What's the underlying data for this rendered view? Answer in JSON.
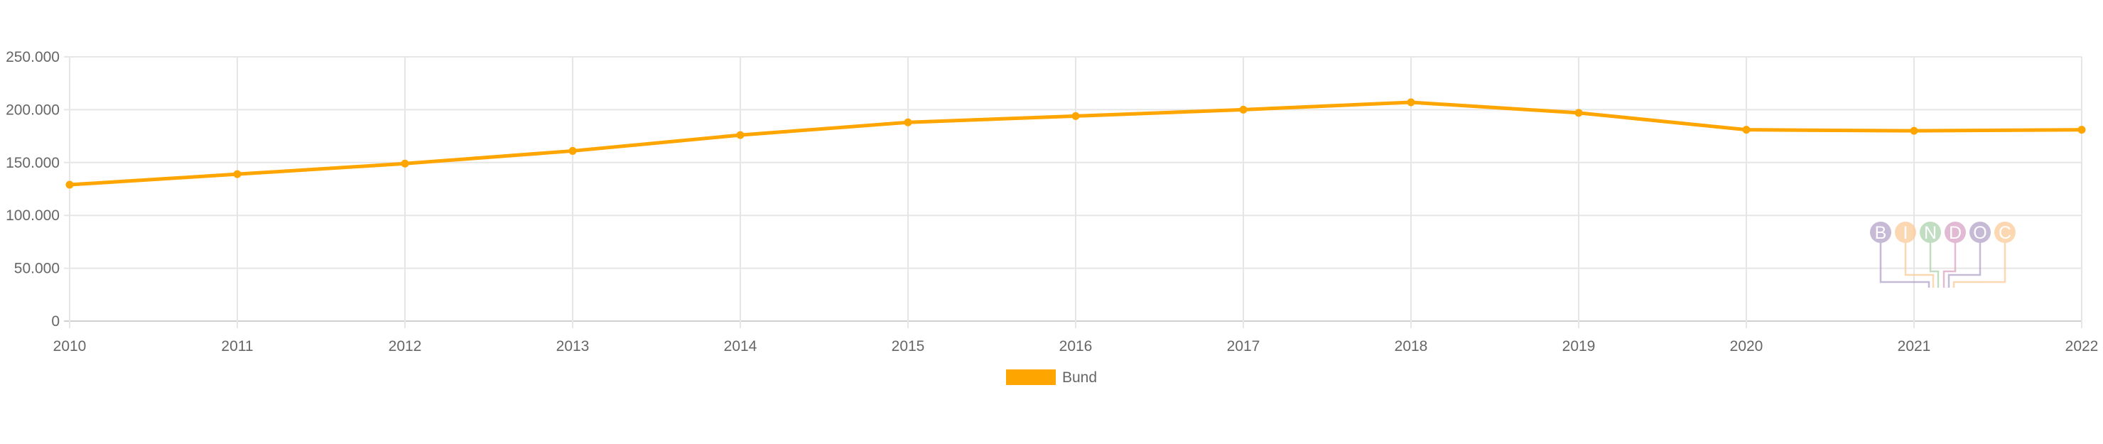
{
  "chart_data": {
    "type": "line",
    "title": "",
    "xlabel": "",
    "ylabel": "",
    "categories": [
      "2010",
      "2011",
      "2012",
      "2013",
      "2014",
      "2015",
      "2016",
      "2017",
      "2018",
      "2019",
      "2020",
      "2021",
      "2022"
    ],
    "series": [
      {
        "name": "Bund",
        "color": "#FFA500",
        "values": [
          129000,
          139000,
          149000,
          161000,
          176000,
          188000,
          194000,
          200000,
          207000,
          197000,
          181000,
          180000,
          181000
        ]
      }
    ],
    "ylim": [
      0,
      250000
    ],
    "yticks": [
      0,
      50000,
      100000,
      150000,
      200000,
      250000
    ],
    "ytick_labels": [
      "0",
      "50.000",
      "100.000",
      "150.000",
      "200.000",
      "250.000"
    ],
    "grid": true,
    "legend_position": "bottom",
    "watermark": {
      "text": "BINDOC",
      "letters": [
        "B",
        "I",
        "N",
        "D",
        "O",
        "C"
      ],
      "colors": [
        "#b3a3c9",
        "#fccb99",
        "#aed4ae",
        "#daa3c6",
        "#b3a3c9",
        "#fccb99"
      ]
    }
  }
}
